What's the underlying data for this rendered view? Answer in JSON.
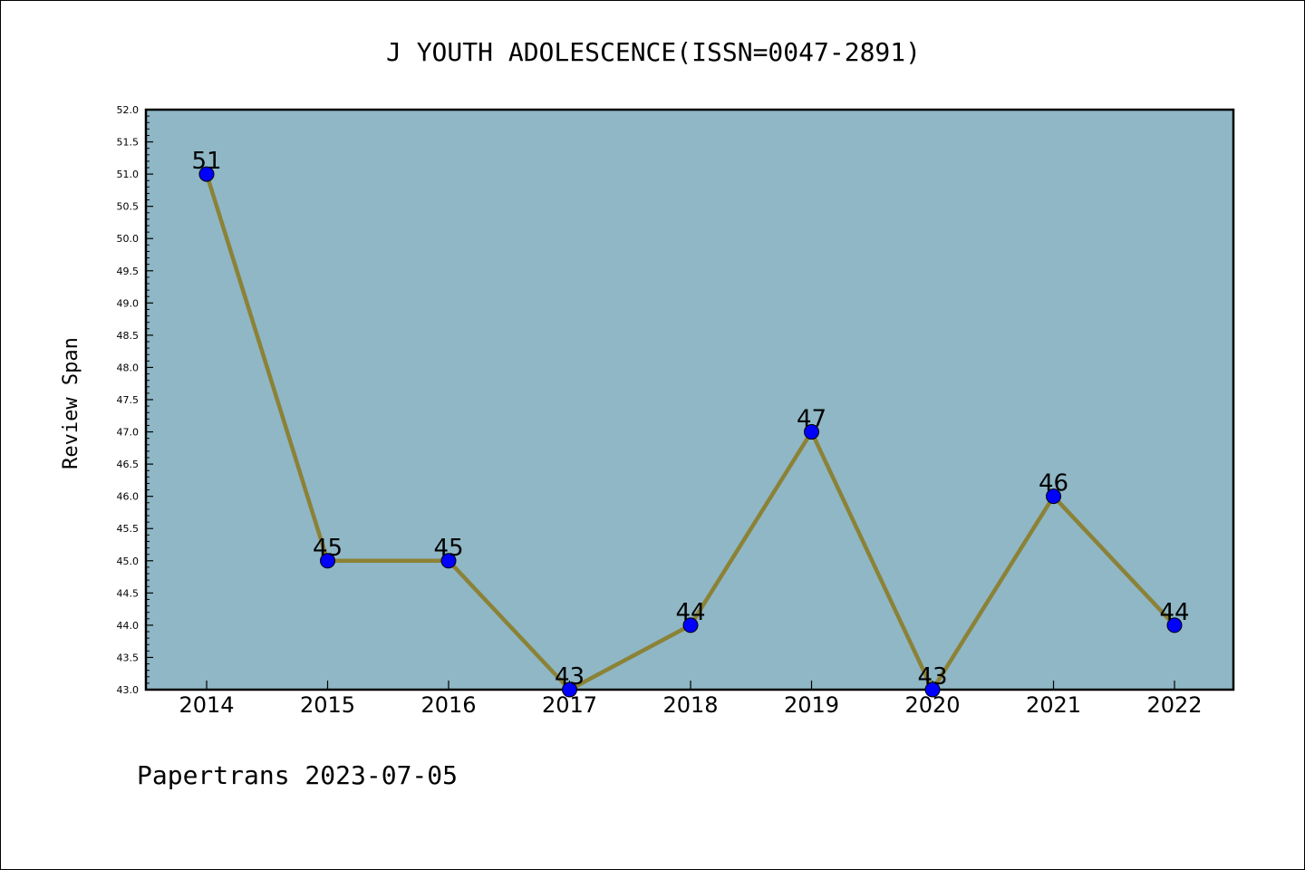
{
  "chart_data": {
    "type": "line",
    "title": "J YOUTH ADOLESCENCE(ISSN=0047-2891)",
    "xlabel": "",
    "ylabel": "Review Span",
    "categories": [
      "2014",
      "2015",
      "2016",
      "2017",
      "2018",
      "2019",
      "2020",
      "2021",
      "2022"
    ],
    "series": [
      {
        "values": [
          51,
          45,
          45,
          43,
          44,
          47,
          43,
          46,
          44
        ],
        "labels": [
          "51",
          "45",
          "45",
          "43",
          "44",
          "47",
          "43",
          "46",
          "44"
        ]
      }
    ],
    "ylim": [
      43.0,
      52.0
    ],
    "yticks": [
      "43.0",
      "43.5",
      "44.0",
      "44.5",
      "45.0",
      "45.5",
      "46.0",
      "46.5",
      "47.0",
      "47.5",
      "48.0",
      "48.5",
      "49.0",
      "49.5",
      "50.0",
      "50.5",
      "51.0",
      "51.5",
      "52.0"
    ],
    "grid": false,
    "legend": "none",
    "colors": {
      "plot_background": "#8fb7c5",
      "line": "#8b8237",
      "marker": "#0000ff"
    },
    "footer": "Papertrans 2023-07-05"
  }
}
